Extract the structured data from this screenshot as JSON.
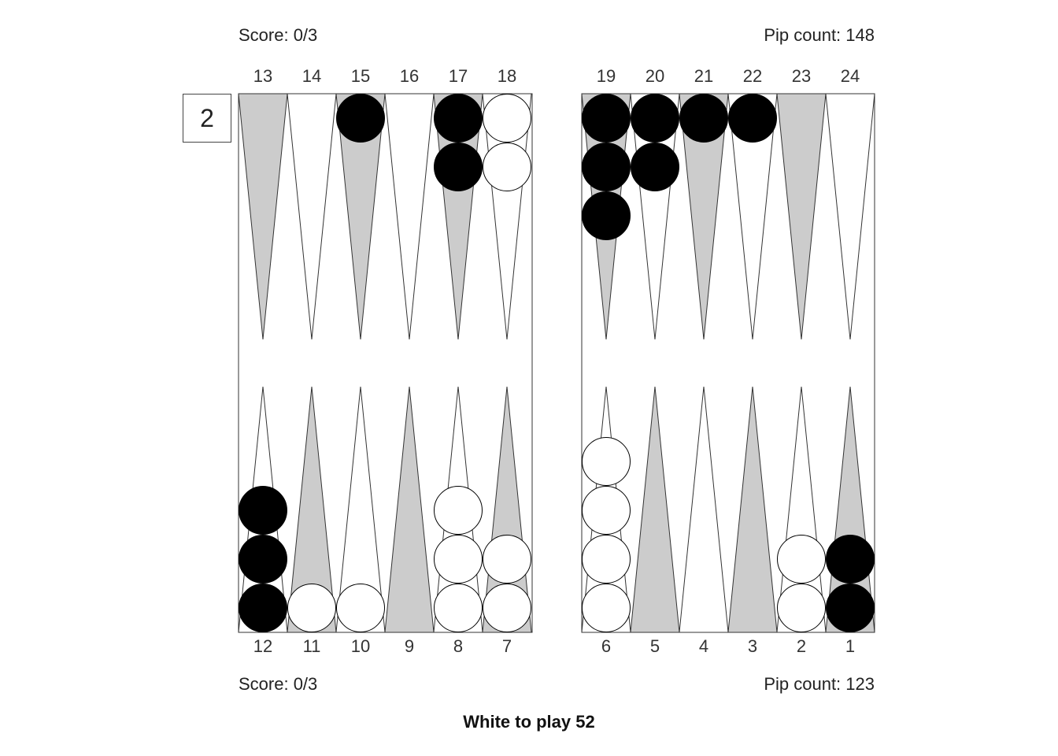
{
  "top": {
    "score": "Score: 0/3",
    "pip": "Pip count: 148"
  },
  "bottom": {
    "score": "Score: 0/3",
    "pip": "Pip count: 123"
  },
  "cube": "2",
  "status": "White to play 52",
  "colors": {
    "light_point": "#ffffff",
    "dark_point": "#cccccc",
    "black_checker": "#000000",
    "white_checker": "#ffffff",
    "border": "#333333"
  },
  "top_numbers": [
    "13",
    "14",
    "15",
    "16",
    "17",
    "18",
    "19",
    "20",
    "21",
    "22",
    "23",
    "24"
  ],
  "bottom_numbers": [
    "12",
    "11",
    "10",
    "9",
    "8",
    "7",
    "6",
    "5",
    "4",
    "3",
    "2",
    "1"
  ],
  "position": {
    "top": [
      {
        "point": "13",
        "color": null,
        "count": 0
      },
      {
        "point": "14",
        "color": null,
        "count": 0
      },
      {
        "point": "15",
        "color": "black",
        "count": 1
      },
      {
        "point": "16",
        "color": null,
        "count": 0
      },
      {
        "point": "17",
        "color": "black",
        "count": 2
      },
      {
        "point": "18",
        "color": "white",
        "count": 2
      },
      {
        "point": "19",
        "color": "black",
        "count": 3
      },
      {
        "point": "20",
        "color": "black",
        "count": 2
      },
      {
        "point": "21",
        "color": "black",
        "count": 1
      },
      {
        "point": "22",
        "color": "black",
        "count": 1
      },
      {
        "point": "23",
        "color": null,
        "count": 0
      },
      {
        "point": "24",
        "color": null,
        "count": 0
      }
    ],
    "bottom": [
      {
        "point": "12",
        "color": "black",
        "count": 3
      },
      {
        "point": "11",
        "color": "white",
        "count": 1
      },
      {
        "point": "10",
        "color": "white",
        "count": 1
      },
      {
        "point": "9",
        "color": null,
        "count": 0
      },
      {
        "point": "8",
        "color": "white",
        "count": 3
      },
      {
        "point": "7",
        "color": "white",
        "count": 2
      },
      {
        "point": "6",
        "color": "white",
        "count": 4
      },
      {
        "point": "5",
        "color": null,
        "count": 0
      },
      {
        "point": "4",
        "color": null,
        "count": 0
      },
      {
        "point": "3",
        "color": null,
        "count": 0
      },
      {
        "point": "2",
        "color": "white",
        "count": 2
      },
      {
        "point": "1",
        "color": "black",
        "count": 2
      }
    ]
  }
}
